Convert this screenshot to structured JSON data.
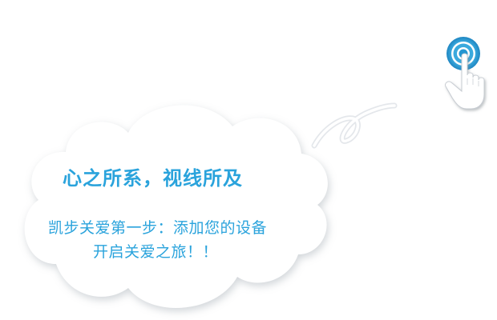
{
  "card": {
    "title": "心之所系，视线所及",
    "message_line1": "凯步关爱第一步：添加您的设备",
    "message_line2": "开启关爱之旅！！"
  },
  "colors": {
    "accent": "#2aa3dc",
    "cloud_fill": "#ffffff",
    "cloud_shadow": "#d9dde2",
    "background": "#ffffff"
  },
  "icons": {
    "tap": "tap-hand-icon",
    "swirl": "swirl-decoration"
  }
}
